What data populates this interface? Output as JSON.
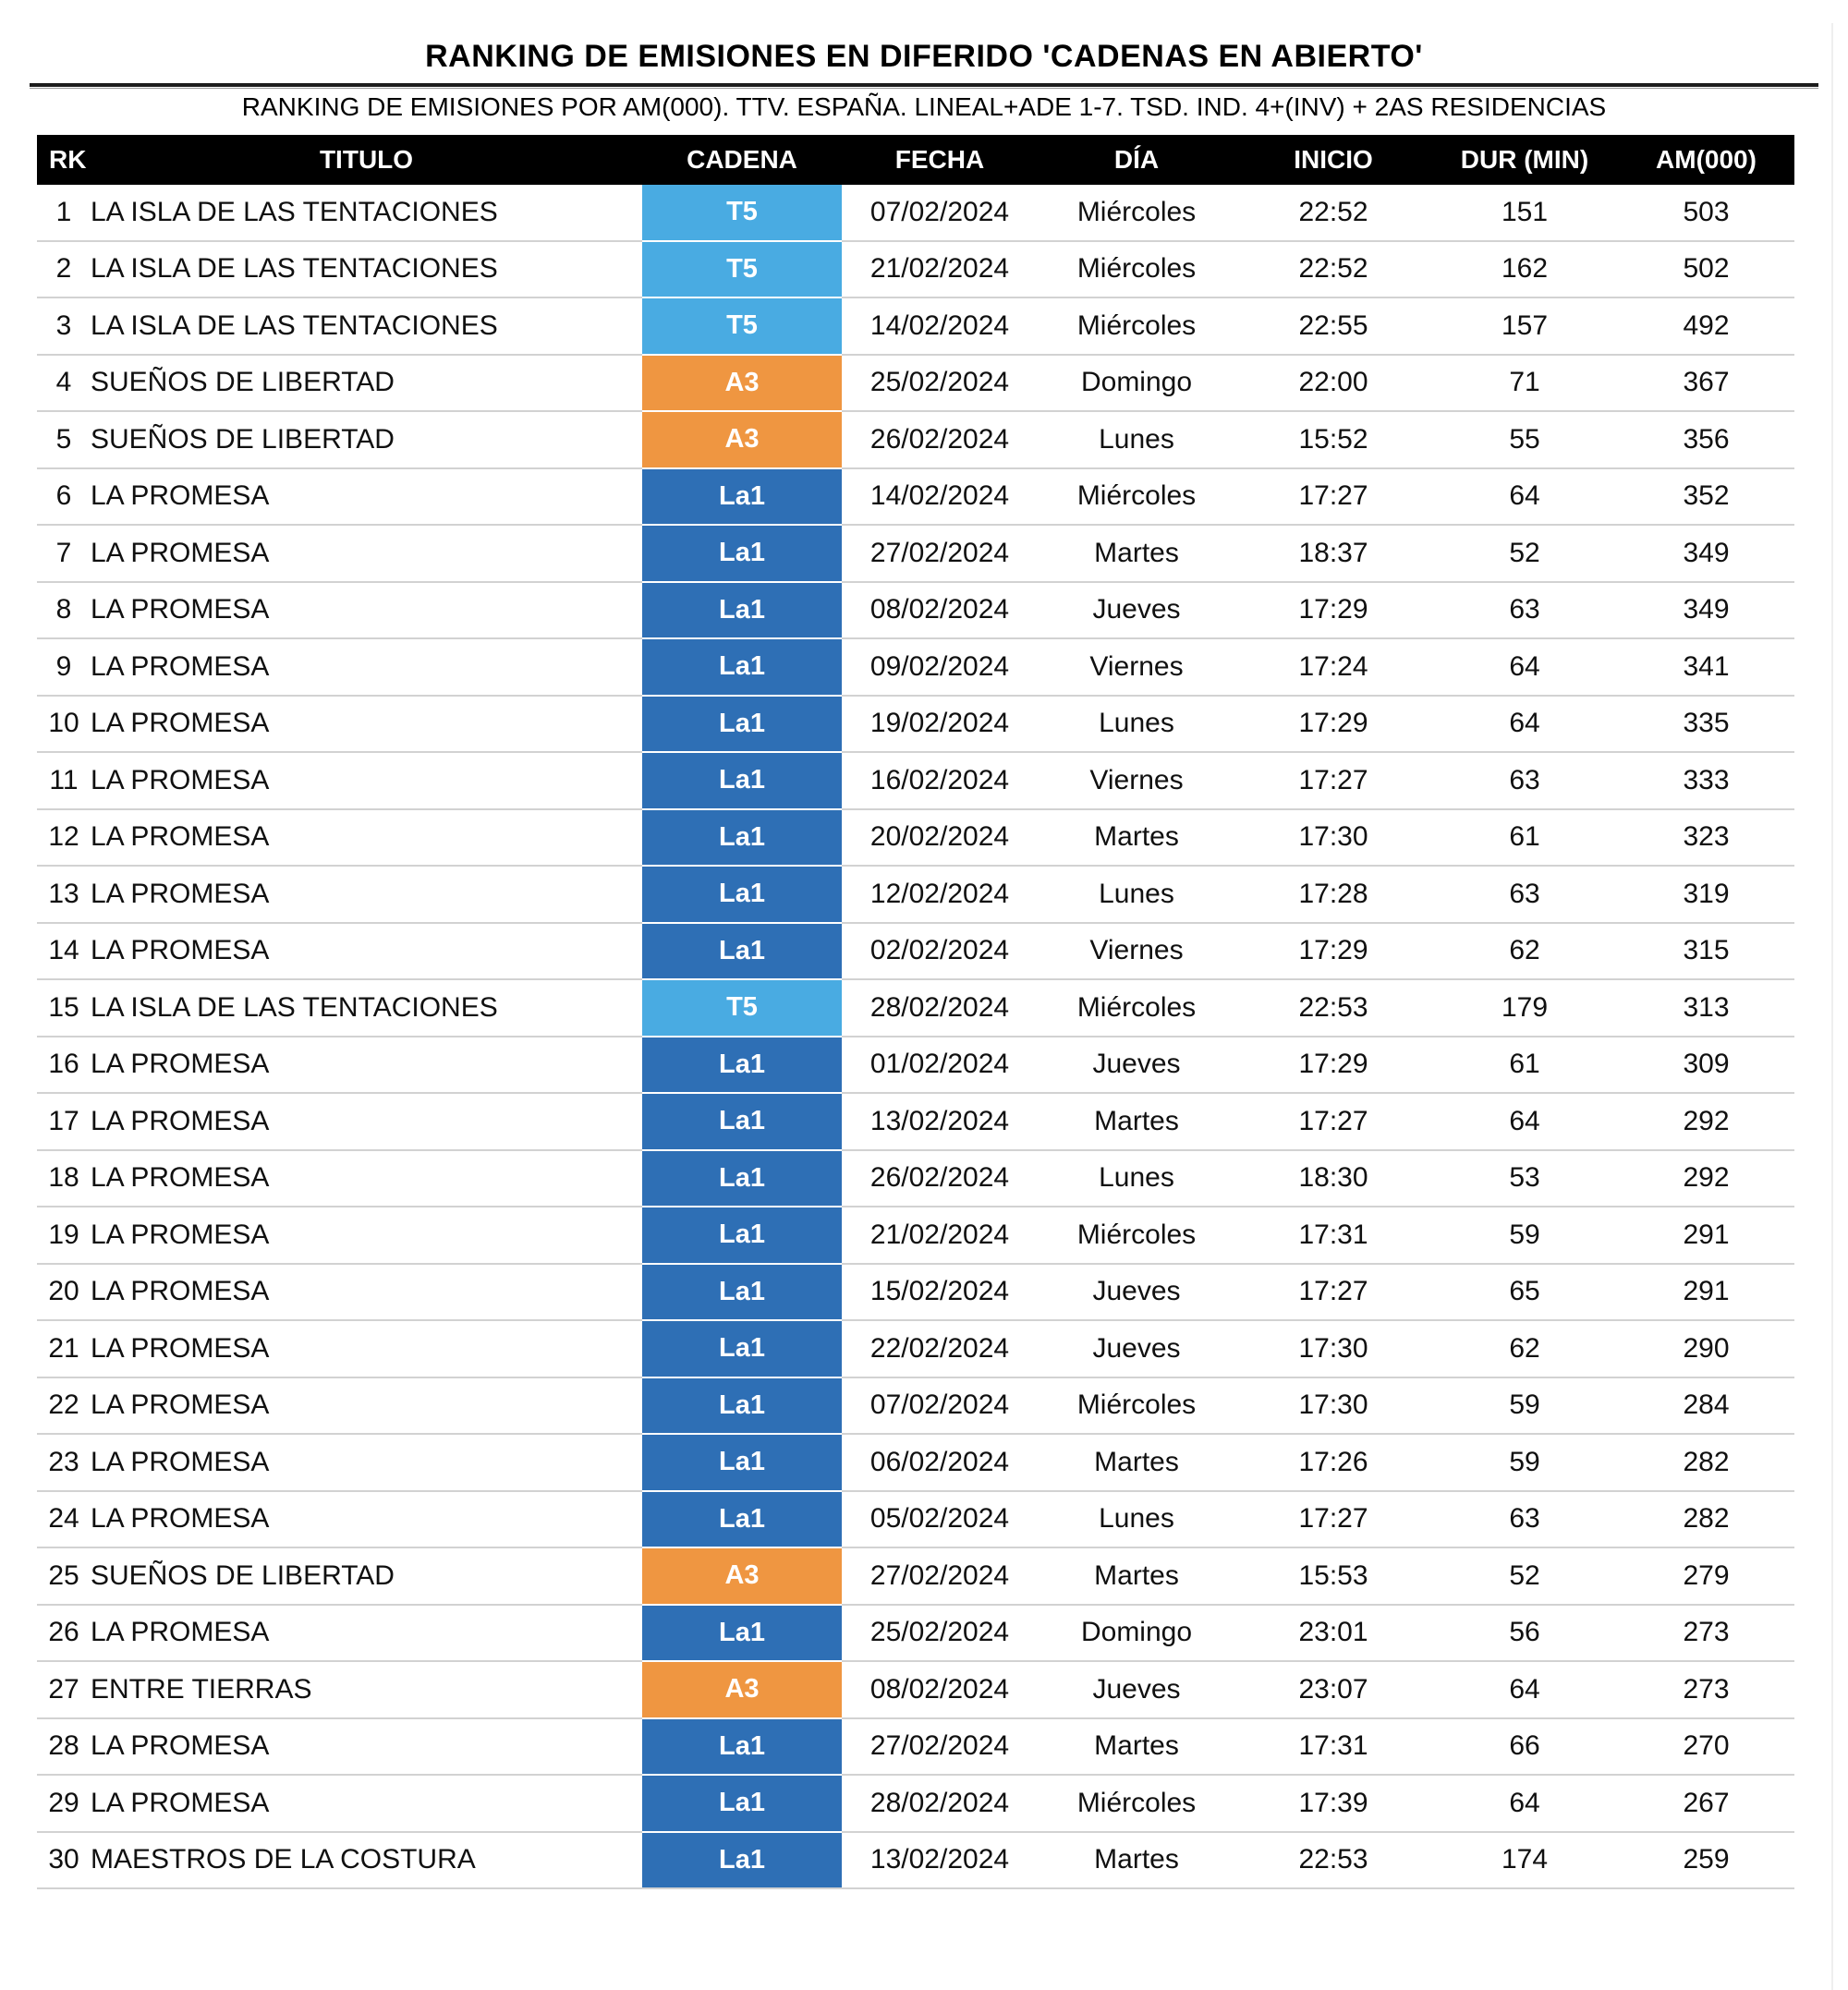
{
  "header": {
    "title": "RANKING DE EMISIONES EN DIFERIDO 'CADENAS EN ABIERTO'",
    "subtitle": "RANKING DE EMISIONES POR AM(000). TTV. ESPAÑA. LINEAL+ADE 1-7. TSD. IND. 4+(INV) + 2AS RESIDENCIAS"
  },
  "colors": {
    "header_bg": "#000000",
    "header_text": "#ffffff",
    "row_divider": "#d2d2d2",
    "badge_text": "#ffffff",
    "channels": {
      "T5": "#49ABE2",
      "A3": "#EF9641",
      "La1": "#2E6FB5"
    }
  },
  "chart_data": {
    "type": "table",
    "title": "RANKING DE EMISIONES EN DIFERIDO 'CADENAS EN ABIERTO'",
    "subtitle": "RANKING DE EMISIONES POR AM(000). TTV. ESPAÑA. LINEAL+ADE 1-7. TSD. IND. 4+(INV) + 2AS RESIDENCIAS",
    "columns": [
      "RK",
      "TITULO",
      "CADENA",
      "FECHA",
      "DÍA",
      "INICIO",
      "DUR (MIN)",
      "AM(000)"
    ],
    "rows": [
      [
        1,
        "LA ISLA DE LAS TENTACIONES",
        "T5",
        "07/02/2024",
        "Miércoles",
        "22:52",
        151,
        503
      ],
      [
        2,
        "LA ISLA DE LAS TENTACIONES",
        "T5",
        "21/02/2024",
        "Miércoles",
        "22:52",
        162,
        502
      ],
      [
        3,
        "LA ISLA DE LAS TENTACIONES",
        "T5",
        "14/02/2024",
        "Miércoles",
        "22:55",
        157,
        492
      ],
      [
        4,
        "SUEÑOS DE LIBERTAD",
        "A3",
        "25/02/2024",
        "Domingo",
        "22:00",
        71,
        367
      ],
      [
        5,
        "SUEÑOS DE LIBERTAD",
        "A3",
        "26/02/2024",
        "Lunes",
        "15:52",
        55,
        356
      ],
      [
        6,
        "LA PROMESA",
        "La1",
        "14/02/2024",
        "Miércoles",
        "17:27",
        64,
        352
      ],
      [
        7,
        "LA PROMESA",
        "La1",
        "27/02/2024",
        "Martes",
        "18:37",
        52,
        349
      ],
      [
        8,
        "LA PROMESA",
        "La1",
        "08/02/2024",
        "Jueves",
        "17:29",
        63,
        349
      ],
      [
        9,
        "LA PROMESA",
        "La1",
        "09/02/2024",
        "Viernes",
        "17:24",
        64,
        341
      ],
      [
        10,
        "LA PROMESA",
        "La1",
        "19/02/2024",
        "Lunes",
        "17:29",
        64,
        335
      ],
      [
        11,
        "LA PROMESA",
        "La1",
        "16/02/2024",
        "Viernes",
        "17:27",
        63,
        333
      ],
      [
        12,
        "LA PROMESA",
        "La1",
        "20/02/2024",
        "Martes",
        "17:30",
        61,
        323
      ],
      [
        13,
        "LA PROMESA",
        "La1",
        "12/02/2024",
        "Lunes",
        "17:28",
        63,
        319
      ],
      [
        14,
        "LA PROMESA",
        "La1",
        "02/02/2024",
        "Viernes",
        "17:29",
        62,
        315
      ],
      [
        15,
        "LA ISLA DE LAS TENTACIONES",
        "T5",
        "28/02/2024",
        "Miércoles",
        "22:53",
        179,
        313
      ],
      [
        16,
        "LA PROMESA",
        "La1",
        "01/02/2024",
        "Jueves",
        "17:29",
        61,
        309
      ],
      [
        17,
        "LA PROMESA",
        "La1",
        "13/02/2024",
        "Martes",
        "17:27",
        64,
        292
      ],
      [
        18,
        "LA PROMESA",
        "La1",
        "26/02/2024",
        "Lunes",
        "18:30",
        53,
        292
      ],
      [
        19,
        "LA PROMESA",
        "La1",
        "21/02/2024",
        "Miércoles",
        "17:31",
        59,
        291
      ],
      [
        20,
        "LA PROMESA",
        "La1",
        "15/02/2024",
        "Jueves",
        "17:27",
        65,
        291
      ],
      [
        21,
        "LA PROMESA",
        "La1",
        "22/02/2024",
        "Jueves",
        "17:30",
        62,
        290
      ],
      [
        22,
        "LA PROMESA",
        "La1",
        "07/02/2024",
        "Miércoles",
        "17:30",
        59,
        284
      ],
      [
        23,
        "LA PROMESA",
        "La1",
        "06/02/2024",
        "Martes",
        "17:26",
        59,
        282
      ],
      [
        24,
        "LA PROMESA",
        "La1",
        "05/02/2024",
        "Lunes",
        "17:27",
        63,
        282
      ],
      [
        25,
        "SUEÑOS DE LIBERTAD",
        "A3",
        "27/02/2024",
        "Martes",
        "15:53",
        52,
        279
      ],
      [
        26,
        "LA PROMESA",
        "La1",
        "25/02/2024",
        "Domingo",
        "23:01",
        56,
        273
      ],
      [
        27,
        "ENTRE TIERRAS",
        "A3",
        "08/02/2024",
        "Jueves",
        "23:07",
        64,
        273
      ],
      [
        28,
        "LA PROMESA",
        "La1",
        "27/02/2024",
        "Martes",
        "17:31",
        66,
        270
      ],
      [
        29,
        "LA PROMESA",
        "La1",
        "28/02/2024",
        "Miércoles",
        "17:39",
        64,
        267
      ],
      [
        30,
        "MAESTROS DE LA COSTURA",
        "La1",
        "13/02/2024",
        "Martes",
        "22:53",
        174,
        259
      ]
    ]
  }
}
